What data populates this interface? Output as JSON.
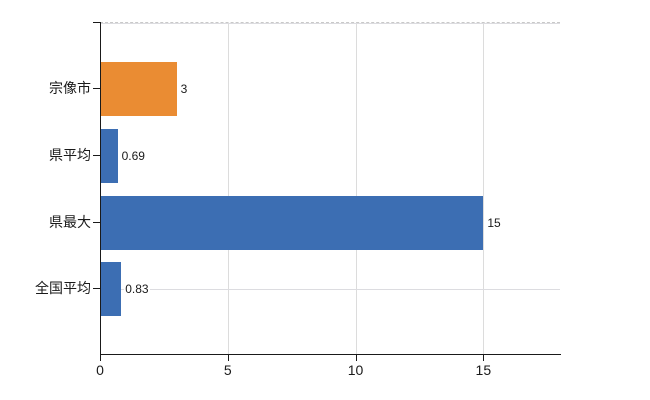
{
  "chart_data": {
    "type": "bar",
    "orientation": "horizontal",
    "title": "",
    "xlabel": "",
    "ylabel": "",
    "categories": [
      "宗像市",
      "県平均",
      "県最大",
      "全国平均"
    ],
    "values": [
      3,
      0.69,
      15,
      0.83
    ],
    "value_labels": [
      "3",
      "0.69",
      "15",
      "0.83"
    ],
    "bar_colors": [
      "#EA8C33",
      "#3C6EB3",
      "#3C6EB3",
      "#3C6EB3"
    ],
    "x_ticks": [
      0,
      5,
      10,
      15
    ],
    "x_tick_labels": [
      "0",
      "5",
      "10",
      "15"
    ],
    "xlim": [
      0,
      18
    ],
    "grid": true,
    "legend": false,
    "gridline_color": "#DCDCDC",
    "axis_color": "#1A1A1A"
  }
}
